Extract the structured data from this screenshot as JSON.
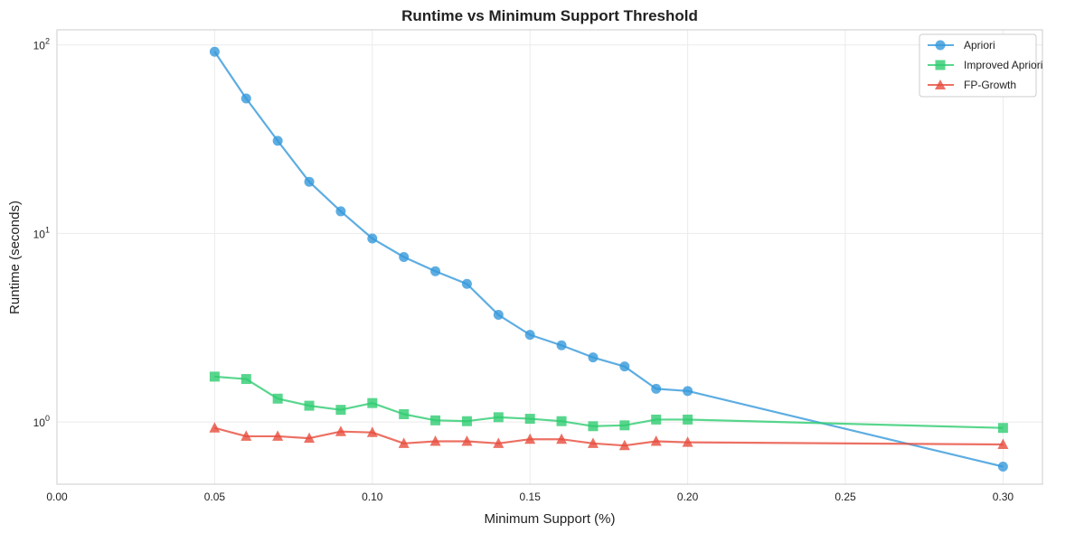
{
  "chart_data": {
    "type": "line",
    "title": "Runtime vs Minimum Support Threshold",
    "xlabel": "Minimum Support (%)",
    "ylabel": "Runtime (seconds)",
    "xlim": [
      0.0,
      0.3125
    ],
    "ylim_log10": [
      -0.33,
      2.08
    ],
    "xscale": "linear",
    "yscale": "log",
    "grid": true,
    "legend_position": "top-right",
    "x_ticks": [
      {
        "value": 0.0,
        "label": "0.00"
      },
      {
        "value": 0.05,
        "label": "0.05"
      },
      {
        "value": 0.1,
        "label": "0.10"
      },
      {
        "value": 0.15,
        "label": "0.15"
      },
      {
        "value": 0.2,
        "label": "0.20"
      },
      {
        "value": 0.25,
        "label": "0.25"
      },
      {
        "value": 0.3,
        "label": "0.30"
      }
    ],
    "y_ticks": [
      {
        "exp": 0,
        "base": "10",
        "sup": "0"
      },
      {
        "exp": 1,
        "base": "10",
        "sup": "1"
      },
      {
        "exp": 2,
        "base": "10",
        "sup": "2"
      }
    ],
    "x": [
      0.05,
      0.06,
      0.07,
      0.08,
      0.09,
      0.1,
      0.11,
      0.12,
      0.13,
      0.14,
      0.15,
      0.16,
      0.17,
      0.18,
      0.19,
      0.2,
      0.3
    ],
    "series": [
      {
        "name": "Apriori",
        "color": "#3498db",
        "marker": "circle",
        "values": [
          92,
          52,
          31,
          18.8,
          13.1,
          9.4,
          7.5,
          6.3,
          5.4,
          3.7,
          2.9,
          2.55,
          2.2,
          1.97,
          1.5,
          1.46,
          0.58
        ]
      },
      {
        "name": "Improved Apriori",
        "color": "#2ecc71",
        "marker": "square",
        "values": [
          1.74,
          1.69,
          1.33,
          1.22,
          1.16,
          1.26,
          1.1,
          1.02,
          1.01,
          1.06,
          1.04,
          1.01,
          0.95,
          0.96,
          1.03,
          1.03,
          0.93
        ]
      },
      {
        "name": "FP-Growth",
        "color": "#e74c3c",
        "marker": "triangle",
        "values": [
          0.93,
          0.84,
          0.84,
          0.82,
          0.89,
          0.88,
          0.77,
          0.79,
          0.79,
          0.77,
          0.81,
          0.81,
          0.77,
          0.75,
          0.79,
          0.78,
          0.76
        ]
      }
    ]
  }
}
